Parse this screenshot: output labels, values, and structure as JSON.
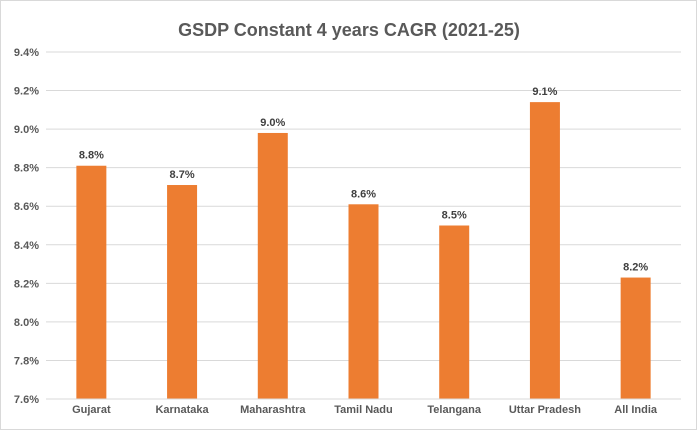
{
  "chart_data": {
    "type": "bar",
    "title": "GSDP Constant 4 years CAGR (2021-25)",
    "xlabel": "",
    "ylabel": "",
    "categories": [
      "Gujarat",
      "Karnataka",
      "Maharashtra",
      "Tamil Nadu",
      "Telangana",
      "Uttar Pradesh",
      "All India"
    ],
    "values": [
      8.81,
      8.71,
      8.98,
      8.61,
      8.5,
      9.14,
      8.23
    ],
    "data_labels": [
      "8.8%",
      "8.7%",
      "9.0%",
      "8.6%",
      "8.5%",
      "9.1%",
      "8.2%"
    ],
    "ylim": [
      7.6,
      9.4
    ],
    "yticks": [
      7.6,
      7.8,
      8.0,
      8.2,
      8.4,
      8.6,
      8.8,
      9.0,
      9.2,
      9.4
    ],
    "ytick_labels": [
      "7.6%",
      "7.8%",
      "8.0%",
      "8.2%",
      "8.4%",
      "8.6%",
      "8.8%",
      "9.0%",
      "9.2%",
      "9.4%"
    ],
    "grid": true,
    "legend": "none",
    "bar_color": "#ED7D31"
  }
}
